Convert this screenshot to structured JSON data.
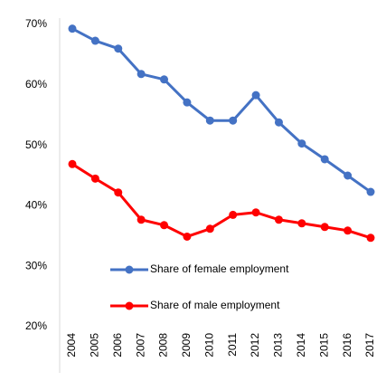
{
  "chart_data": {
    "type": "line",
    "categories": [
      "2004",
      "2005",
      "2006",
      "2007",
      "2008",
      "2009",
      "2010",
      "2011",
      "2012",
      "2013",
      "2014",
      "2015",
      "2016",
      "2017"
    ],
    "series": [
      {
        "name": "Share of female employment",
        "color": "#4472c4",
        "values": [
          69.3,
          67.3,
          66,
          61.8,
          60.9,
          57.1,
          54.1,
          54.1,
          58.3,
          53.8,
          50.3,
          47.7,
          45,
          42.3
        ]
      },
      {
        "name": "Share of male employment",
        "color": "#ff0000",
        "values": [
          46.9,
          44.5,
          42.2,
          37.7,
          36.8,
          34.9,
          36.2,
          38.5,
          38.9,
          37.7,
          37.1,
          36.5,
          35.9,
          34.7
        ]
      }
    ],
    "ylim": [
      20,
      70
    ],
    "yticks": [
      {
        "value": 20,
        "label": "20%"
      },
      {
        "value": 30,
        "label": "30%"
      },
      {
        "value": 40,
        "label": "40%"
      },
      {
        "value": 50,
        "label": "50%"
      },
      {
        "value": 60,
        "label": "60%"
      },
      {
        "value": 70,
        "label": "70%"
      }
    ],
    "grid": false,
    "legend": "lower center"
  }
}
